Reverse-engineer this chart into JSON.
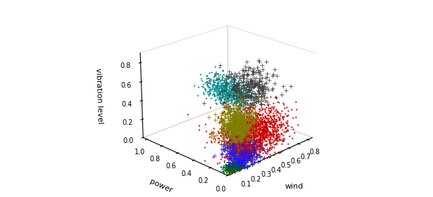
{
  "clusters": [
    {
      "color": "#404040",
      "marker": "+",
      "size": 20,
      "n": 300,
      "wind_mean": 0.38,
      "power_mean": 0.22,
      "vib_mean": 0.65,
      "wind_std": 0.09,
      "power_std": 0.11,
      "vib_std": 0.1
    },
    {
      "color": "#808000",
      "marker": "+",
      "size": 20,
      "n": 500,
      "wind_mean": 0.17,
      "power_mean": 0.1,
      "vib_mean": 0.4,
      "wind_std": 0.06,
      "power_std": 0.07,
      "vib_std": 0.09
    },
    {
      "color": "#1a1aff",
      "marker": "+",
      "size": 15,
      "n": 600,
      "wind_mean": 0.2,
      "power_mean": 0.08,
      "vib_mean": 0.13,
      "wind_std": 0.06,
      "power_std": 0.07,
      "vib_std": 0.07
    },
    {
      "color": "#cc0000",
      "marker": ".",
      "size": 4,
      "n": 1500,
      "wind_mean": 0.38,
      "power_mean": 0.16,
      "vib_mean": 0.22,
      "wind_std": 0.13,
      "power_std": 0.13,
      "vib_std": 0.1
    },
    {
      "color": "#008B8B",
      "marker": ".",
      "size": 4,
      "n": 700,
      "wind_mean": 0.56,
      "power_mean": 0.68,
      "vib_mean": 0.4,
      "wind_std": 0.05,
      "power_std": 0.14,
      "vib_std": 0.07
    },
    {
      "color": "#006400",
      "marker": ".",
      "size": 4,
      "n": 500,
      "wind_mean": 0.09,
      "power_mean": 0.04,
      "vib_mean": 0.025,
      "wind_std": 0.04,
      "power_std": 0.025,
      "vib_std": 0.018
    }
  ],
  "xlabel": "wind",
  "ylabel": "power",
  "zlabel": "vibration level",
  "xlim": [
    0.0,
    0.85
  ],
  "ylim": [
    0.0,
    1.05
  ],
  "zlim": [
    0.0,
    0.9
  ],
  "xticks": [
    0.1,
    0.2,
    0.3,
    0.4,
    0.5,
    0.6,
    0.7,
    0.8
  ],
  "yticks": [
    0.0,
    0.2,
    0.4,
    0.6,
    0.8,
    1.0
  ],
  "zticks": [
    0.0,
    0.2,
    0.4,
    0.6,
    0.8
  ],
  "elev": 22,
  "azim": -135,
  "figsize": [
    6.18,
    2.81
  ],
  "dpi": 100,
  "seed": 42
}
